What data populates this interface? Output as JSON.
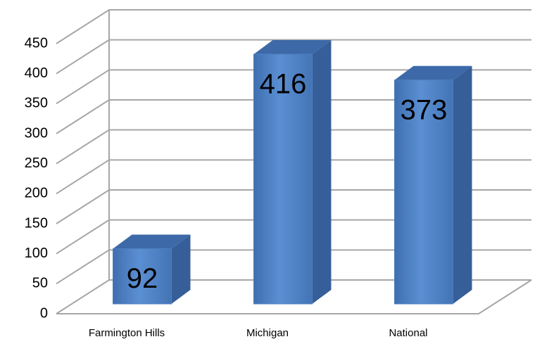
{
  "chart_data": {
    "type": "bar3d",
    "categories": [
      "Farmington Hills",
      "Michigan",
      "National"
    ],
    "values": [
      92,
      416,
      373
    ],
    "color": "#4f81bd",
    "ylim": [
      0,
      450
    ],
    "yticks": [
      0,
      50,
      100,
      150,
      200,
      250,
      300,
      350,
      400,
      450
    ],
    "grid": true
  }
}
